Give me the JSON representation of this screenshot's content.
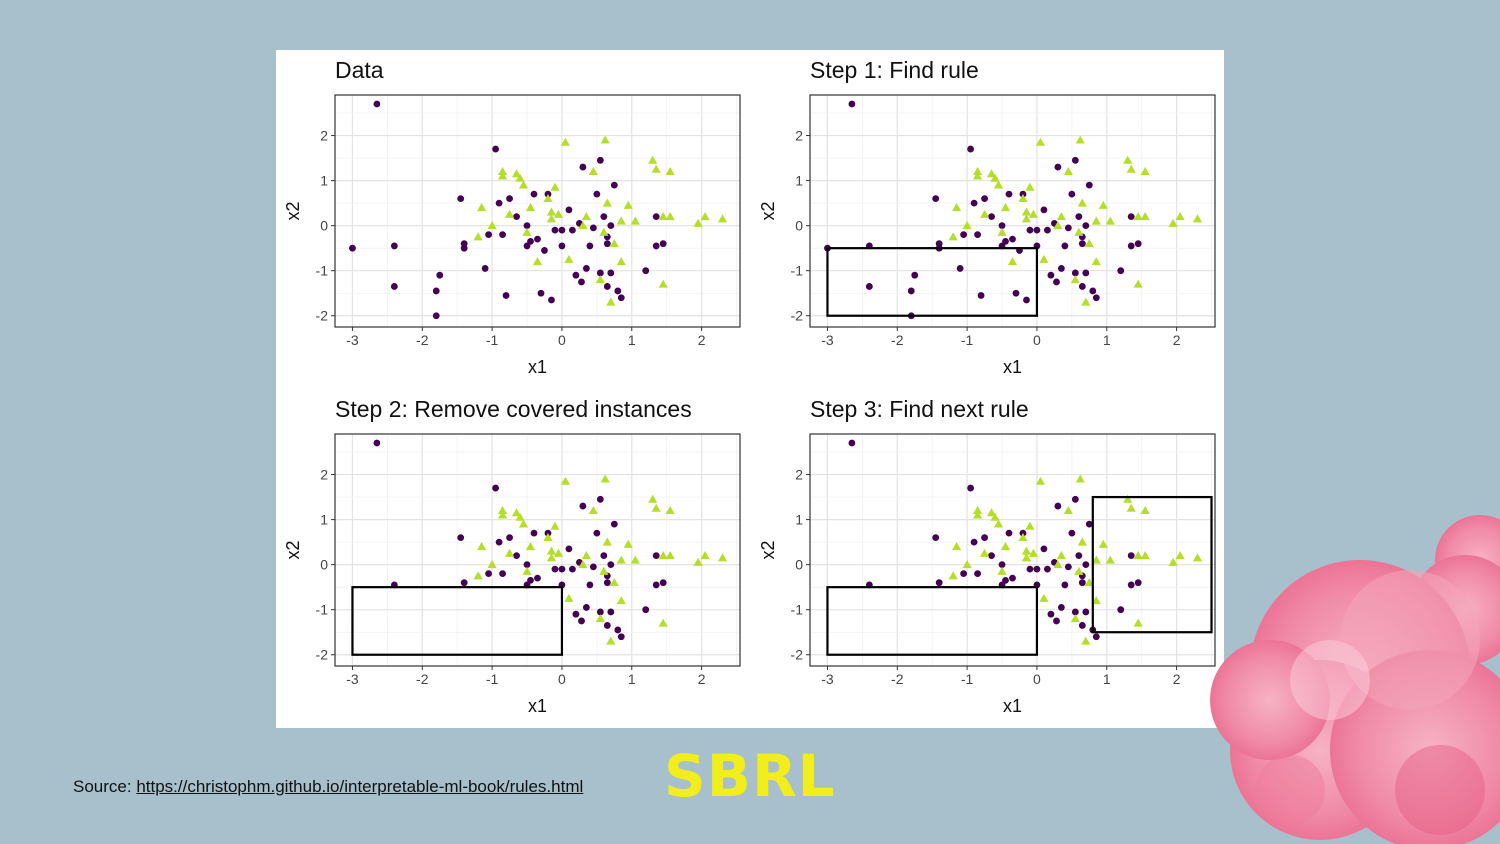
{
  "slide": {
    "source_label": "Source:",
    "source_url": "https://christophm.github.io/interpretable-ml-book/rules.html",
    "big_title": "SBRL"
  },
  "colors": {
    "circle_class": "#440154",
    "triangle_class": "#b5de2b",
    "background": "#a7c0cc",
    "title_color": "#f2ee1b",
    "rule_box": "#000000"
  },
  "chart_data": [
    {
      "type": "scatter",
      "title": "Data",
      "xlabel": "x1",
      "ylabel": "x2",
      "xticks": [
        -3,
        -2,
        -1,
        0,
        1,
        2
      ],
      "yticks": [
        -2,
        -1,
        0,
        1,
        2
      ],
      "xlim": [
        -3.25,
        2.55
      ],
      "ylim": [
        -2.25,
        2.9
      ],
      "grid": true,
      "remove_covered": false,
      "rules": []
    },
    {
      "type": "scatter",
      "title": "Step 1: Find rule",
      "xlabel": "x1",
      "ylabel": "x2",
      "xticks": [
        -3,
        -2,
        -1,
        0,
        1,
        2
      ],
      "yticks": [
        -2,
        -1,
        0,
        1,
        2
      ],
      "xlim": [
        -3.25,
        2.55
      ],
      "ylim": [
        -2.25,
        2.9
      ],
      "grid": true,
      "remove_covered": false,
      "rules": [
        {
          "x1": [
            -3,
            0
          ],
          "x2": [
            -2,
            -0.5
          ]
        }
      ]
    },
    {
      "type": "scatter",
      "title": "Step 2: Remove covered instances",
      "xlabel": "x1",
      "ylabel": "x2",
      "xticks": [
        -3,
        -2,
        -1,
        0,
        1,
        2
      ],
      "yticks": [
        -2,
        -1,
        0,
        1,
        2
      ],
      "xlim": [
        -3.25,
        2.55
      ],
      "ylim": [
        -2.25,
        2.9
      ],
      "grid": true,
      "remove_covered": true,
      "rules": [
        {
          "x1": [
            -3,
            0
          ],
          "x2": [
            -2,
            -0.5
          ]
        }
      ]
    },
    {
      "type": "scatter",
      "title": "Step 3: Find next rule",
      "xlabel": "x1",
      "ylabel": "x2",
      "xticks": [
        -3,
        -2,
        -1,
        0,
        1,
        2
      ],
      "yticks": [
        -2,
        -1,
        0,
        1,
        2
      ],
      "xlim": [
        -3.25,
        2.55
      ],
      "ylim": [
        -2.25,
        2.9
      ],
      "grid": true,
      "remove_covered": true,
      "rules": [
        {
          "x1": [
            -3,
            0
          ],
          "x2": [
            -2,
            -0.5
          ]
        },
        {
          "x1": [
            0.8,
            2.5
          ],
          "x2": [
            -1.5,
            1.5
          ]
        }
      ]
    }
  ],
  "points": {
    "circles": [
      [
        -2.65,
        2.7
      ],
      [
        -3.0,
        -0.5
      ],
      [
        -2.4,
        -0.45
      ],
      [
        -2.4,
        -1.35
      ],
      [
        -1.8,
        -1.45
      ],
      [
        -1.75,
        -1.1
      ],
      [
        -1.8,
        -2.0
      ],
      [
        -1.45,
        0.6
      ],
      [
        -1.4,
        -0.4
      ],
      [
        -1.4,
        -0.5
      ],
      [
        -1.1,
        -0.95
      ],
      [
        -1.05,
        -0.2
      ],
      [
        -0.95,
        1.7
      ],
      [
        -0.9,
        0.5
      ],
      [
        -0.85,
        -0.2
      ],
      [
        -0.8,
        -1.55
      ],
      [
        -0.75,
        0.6
      ],
      [
        -0.65,
        0.2
      ],
      [
        -0.5,
        -0.45
      ],
      [
        -0.5,
        0.0
      ],
      [
        -0.45,
        -0.35
      ],
      [
        -0.4,
        0.7
      ],
      [
        -0.35,
        -0.3
      ],
      [
        -0.3,
        -1.5
      ],
      [
        -0.25,
        -0.55
      ],
      [
        -0.2,
        0.7
      ],
      [
        -0.15,
        -1.65
      ],
      [
        -0.1,
        -0.1
      ],
      [
        0.0,
        -0.1
      ],
      [
        0.0,
        -0.45
      ],
      [
        0.1,
        0.35
      ],
      [
        0.15,
        -0.1
      ],
      [
        0.2,
        -1.1
      ],
      [
        0.25,
        0.05
      ],
      [
        0.28,
        -1.25
      ],
      [
        0.3,
        1.3
      ],
      [
        0.35,
        -0.95
      ],
      [
        0.4,
        -0.45
      ],
      [
        0.45,
        -0.05
      ],
      [
        0.5,
        0.7
      ],
      [
        0.55,
        -1.05
      ],
      [
        0.55,
        1.45
      ],
      [
        0.6,
        0.2
      ],
      [
        0.65,
        -0.4
      ],
      [
        0.65,
        -0.25
      ],
      [
        0.65,
        -1.35
      ],
      [
        0.7,
        0.0
      ],
      [
        0.7,
        -1.05
      ],
      [
        0.75,
        0.9
      ],
      [
        0.8,
        -1.45
      ],
      [
        0.85,
        -1.6
      ],
      [
        1.2,
        -1.0
      ],
      [
        1.35,
        0.2
      ],
      [
        1.35,
        -0.45
      ],
      [
        1.45,
        -0.4
      ]
    ],
    "triangles": [
      [
        -1.15,
        0.4
      ],
      [
        -1.2,
        -0.25
      ],
      [
        -1.0,
        0.0
      ],
      [
        -0.85,
        1.2
      ],
      [
        -0.85,
        1.1
      ],
      [
        -0.75,
        0.25
      ],
      [
        -0.65,
        1.15
      ],
      [
        -0.6,
        1.05
      ],
      [
        -0.55,
        0.9
      ],
      [
        -0.5,
        -0.15
      ],
      [
        -0.45,
        0.4
      ],
      [
        -0.35,
        -0.8
      ],
      [
        -0.2,
        0.6
      ],
      [
        -0.15,
        0.3
      ],
      [
        -0.15,
        0.15
      ],
      [
        -0.1,
        0.85
      ],
      [
        -0.05,
        0.25
      ],
      [
        0.05,
        1.85
      ],
      [
        0.1,
        -0.75
      ],
      [
        0.3,
        0.0
      ],
      [
        0.35,
        0.2
      ],
      [
        0.45,
        1.2
      ],
      [
        0.55,
        -1.2
      ],
      [
        0.6,
        -0.15
      ],
      [
        0.62,
        1.9
      ],
      [
        0.65,
        0.5
      ],
      [
        0.7,
        -1.7
      ],
      [
        0.75,
        -0.4
      ],
      [
        0.85,
        0.1
      ],
      [
        0.85,
        -0.8
      ],
      [
        0.95,
        0.45
      ],
      [
        1.05,
        0.1
      ],
      [
        1.3,
        1.45
      ],
      [
        1.35,
        1.25
      ],
      [
        1.45,
        -1.3
      ],
      [
        1.55,
        1.2
      ],
      [
        1.45,
        0.2
      ],
      [
        1.55,
        0.2
      ],
      [
        1.95,
        0.05
      ],
      [
        2.05,
        0.2
      ],
      [
        2.3,
        0.15
      ]
    ]
  }
}
